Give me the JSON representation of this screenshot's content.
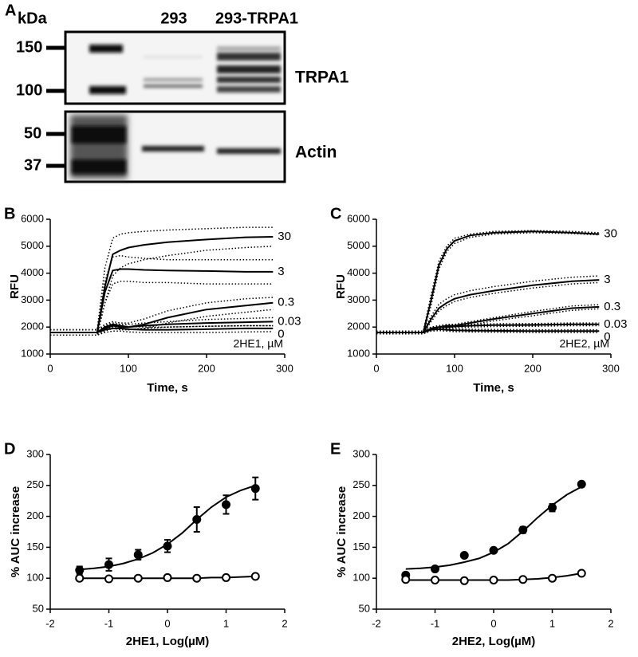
{
  "blot": {
    "panel": "A",
    "unit": "kDa",
    "lanes": [
      "293",
      "293-TRPA1"
    ],
    "markers": [
      150,
      100,
      50,
      37
    ],
    "proteins": [
      "TRPA1",
      "Actin"
    ]
  },
  "chart_data": [
    {
      "type": "line",
      "panel": "B",
      "xlabel": "Time, s",
      "ylabel": "RFU",
      "annotation": "2HE1, µM",
      "x": [
        0,
        20,
        40,
        60,
        70,
        80,
        90,
        100,
        120,
        150,
        200,
        250,
        285
      ],
      "xlim": [
        0,
        300
      ],
      "xticks": [
        0,
        100,
        200,
        300
      ],
      "ylim": [
        1000,
        6000
      ],
      "yticks": [
        1000,
        2000,
        3000,
        4000,
        5000,
        6000
      ],
      "series": [
        {
          "name": "30",
          "color": "#000000",
          "values": [
            1800,
            1800,
            1800,
            1800,
            3500,
            4700,
            4850,
            4950,
            5050,
            5150,
            5250,
            5330,
            5350
          ],
          "upper": [
            1900,
            1900,
            1900,
            1900,
            4200,
            5300,
            5450,
            5500,
            5550,
            5600,
            5650,
            5700,
            5700
          ],
          "lower": [
            1700,
            1700,
            1700,
            1700,
            2900,
            3900,
            4200,
            4350,
            4500,
            4650,
            4850,
            4950,
            5000
          ]
        },
        {
          "name": "3",
          "color": "#000000",
          "values": [
            1800,
            1800,
            1800,
            1800,
            3300,
            4100,
            4150,
            4150,
            4120,
            4100,
            4080,
            4050,
            4050
          ],
          "upper": [
            1900,
            1900,
            1900,
            1900,
            3700,
            4600,
            4650,
            4600,
            4550,
            4500,
            4500,
            4500,
            4500
          ],
          "lower": [
            1700,
            1700,
            1700,
            1700,
            2900,
            3600,
            3700,
            3700,
            3650,
            3650,
            3600,
            3600,
            3600
          ]
        },
        {
          "name": "0.3",
          "color": "#000000",
          "values": [
            1800,
            1800,
            1800,
            1800,
            2000,
            2100,
            2050,
            2000,
            2100,
            2350,
            2650,
            2800,
            2900
          ],
          "upper": [
            1900,
            1900,
            1900,
            1900,
            2100,
            2200,
            2150,
            2150,
            2300,
            2600,
            2900,
            3050,
            3100
          ],
          "lower": [
            1700,
            1700,
            1700,
            1700,
            1900,
            2000,
            1950,
            1900,
            1950,
            2150,
            2400,
            2550,
            2650
          ]
        },
        {
          "name": "0.03",
          "color": "#000000",
          "values": [
            1800,
            1800,
            1800,
            1800,
            1950,
            2050,
            2000,
            2000,
            2050,
            2100,
            2150,
            2180,
            2200
          ],
          "upper": [
            1900,
            1900,
            1900,
            1900,
            2050,
            2150,
            2100,
            2100,
            2150,
            2200,
            2280,
            2320,
            2350
          ],
          "lower": [
            1700,
            1700,
            1700,
            1700,
            1850,
            1950,
            1900,
            1900,
            1950,
            2000,
            2030,
            2050,
            2050
          ]
        },
        {
          "name": "0",
          "color": "#000000",
          "values": [
            1800,
            1800,
            1800,
            1800,
            1900,
            1950,
            1950,
            1920,
            1900,
            1900,
            1920,
            1950,
            1950
          ],
          "upper": [
            1900,
            1900,
            1900,
            1900,
            2000,
            2050,
            2050,
            2020,
            2000,
            2000,
            2030,
            2050,
            2050
          ],
          "lower": [
            1700,
            1700,
            1700,
            1700,
            1800,
            1850,
            1850,
            1820,
            1800,
            1800,
            1800,
            1820,
            1830
          ]
        }
      ]
    },
    {
      "type": "line",
      "panel": "C",
      "xlabel": "Time, s",
      "ylabel": "RFU",
      "annotation": "2HE2, µM",
      "x": [
        0,
        20,
        40,
        60,
        70,
        80,
        90,
        100,
        120,
        150,
        200,
        250,
        285
      ],
      "xlim": [
        0,
        300
      ],
      "xticks": [
        0,
        100,
        200,
        300
      ],
      "ylim": [
        1000,
        6000
      ],
      "yticks": [
        1000,
        2000,
        3000,
        4000,
        5000,
        6000
      ],
      "series": [
        {
          "name": "30",
          "color": "#000000",
          "values": [
            1800,
            1800,
            1800,
            1800,
            3000,
            4300,
            4900,
            5200,
            5400,
            5500,
            5550,
            5500,
            5450
          ],
          "upper": [
            1850,
            1850,
            1850,
            1850,
            3200,
            4450,
            5000,
            5300,
            5450,
            5550,
            5580,
            5550,
            5500
          ],
          "lower": [
            1750,
            1750,
            1750,
            1750,
            2800,
            4150,
            4800,
            5100,
            5330,
            5450,
            5500,
            5470,
            5420
          ]
        },
        {
          "name": "3",
          "color": "#000000",
          "values": [
            1800,
            1800,
            1800,
            1800,
            2300,
            2700,
            2900,
            3050,
            3200,
            3350,
            3550,
            3700,
            3750
          ],
          "upper": [
            1850,
            1850,
            1850,
            1850,
            2400,
            2850,
            3050,
            3200,
            3350,
            3500,
            3700,
            3850,
            3900
          ],
          "lower": [
            1750,
            1750,
            1750,
            1750,
            2200,
            2600,
            2800,
            2950,
            3100,
            3250,
            3450,
            3600,
            3650
          ]
        },
        {
          "name": "0.3",
          "color": "#000000",
          "values": [
            1800,
            1800,
            1800,
            1800,
            1950,
            2000,
            2050,
            2050,
            2150,
            2300,
            2500,
            2700,
            2750
          ],
          "upper": [
            1850,
            1850,
            1850,
            1850,
            2000,
            2050,
            2100,
            2100,
            2200,
            2350,
            2580,
            2780,
            2830
          ],
          "lower": [
            1750,
            1750,
            1750,
            1750,
            1900,
            1950,
            2000,
            2000,
            2080,
            2230,
            2420,
            2620,
            2680
          ]
        },
        {
          "name": "0.03",
          "color": "#000000",
          "values": [
            1800,
            1800,
            1800,
            1800,
            1950,
            2000,
            2000,
            2020,
            2050,
            2070,
            2080,
            2100,
            2100
          ],
          "upper": [
            1850,
            1850,
            1850,
            1850,
            2000,
            2050,
            2050,
            2070,
            2100,
            2120,
            2130,
            2150,
            2150
          ],
          "lower": [
            1750,
            1750,
            1750,
            1750,
            1900,
            1950,
            1950,
            1970,
            2000,
            2020,
            2030,
            2050,
            2050
          ]
        },
        {
          "name": "0",
          "color": "#000000",
          "values": [
            1800,
            1800,
            1800,
            1800,
            1900,
            1920,
            1900,
            1880,
            1870,
            1860,
            1850,
            1850,
            1850
          ],
          "upper": [
            1850,
            1850,
            1850,
            1850,
            1950,
            1970,
            1950,
            1930,
            1920,
            1910,
            1900,
            1900,
            1900
          ],
          "lower": [
            1750,
            1750,
            1750,
            1750,
            1850,
            1870,
            1850,
            1830,
            1820,
            1810,
            1800,
            1800,
            1800
          ]
        }
      ]
    },
    {
      "type": "scatter",
      "panel": "D",
      "xlabel": "2HE1, Log(µM)",
      "ylabel": "% AUC increase",
      "x": [
        -1.5,
        -1,
        -0.5,
        0,
        0.5,
        1,
        1.5
      ],
      "fit_x": [
        -1.5,
        -1.25,
        -1,
        -0.75,
        -0.5,
        -0.25,
        0,
        0.25,
        0.5,
        0.75,
        1,
        1.25,
        1.5
      ],
      "xlim": [
        -2,
        2
      ],
      "xticks": [
        -2,
        -1,
        0,
        1,
        2
      ],
      "ylim": [
        50,
        300
      ],
      "yticks": [
        50,
        100,
        150,
        200,
        250,
        300
      ],
      "series": [
        {
          "color": "#000000",
          "filled": true,
          "values": [
            113,
            122,
            138,
            152,
            195,
            219,
            245
          ],
          "errors": [
            6,
            10,
            8,
            10,
            20,
            15,
            18
          ],
          "fit": [
            114,
            116,
            119,
            124,
            131,
            141,
            155,
            173,
            195,
            215,
            231,
            242,
            250
          ]
        },
        {
          "color": "#000000",
          "filled": false,
          "values": [
            100,
            99,
            100,
            101,
            100,
            101,
            103
          ],
          "fit": [
            100,
            100,
            100,
            100,
            100,
            100,
            100,
            100,
            100,
            101,
            101,
            102,
            103
          ]
        }
      ]
    },
    {
      "type": "scatter",
      "panel": "E",
      "xlabel": "2HE2, Log(µM)",
      "ylabel": "% AUC increase",
      "x": [
        -1.5,
        -1,
        -0.5,
        0,
        0.5,
        1,
        1.5
      ],
      "fit_x": [
        -1.5,
        -1.25,
        -1,
        -0.75,
        -0.5,
        -0.25,
        0,
        0.25,
        0.5,
        0.75,
        1,
        1.25,
        1.5
      ],
      "xlim": [
        -2,
        2
      ],
      "xticks": [
        -2,
        -1,
        0,
        1,
        2
      ],
      "ylim": [
        50,
        300
      ],
      "yticks": [
        50,
        100,
        150,
        200,
        250,
        300
      ],
      "series": [
        {
          "color": "#000000",
          "filled": true,
          "values": [
            105,
            115,
            137,
            145,
            178,
            214,
            252
          ],
          "errors": [
            4,
            3,
            0,
            0,
            5,
            6,
            0
          ],
          "fit": [
            115,
            116,
            118,
            121,
            126,
            132,
            142,
            156,
            176,
            198,
            218,
            235,
            248
          ]
        },
        {
          "color": "#000000",
          "filled": false,
          "values": [
            98,
            97,
            96,
            97,
            98,
            100,
            108
          ],
          "fit": [
            97,
            97,
            97,
            97,
            97,
            97,
            97,
            97,
            98,
            99,
            101,
            104,
            108
          ]
        }
      ]
    }
  ]
}
